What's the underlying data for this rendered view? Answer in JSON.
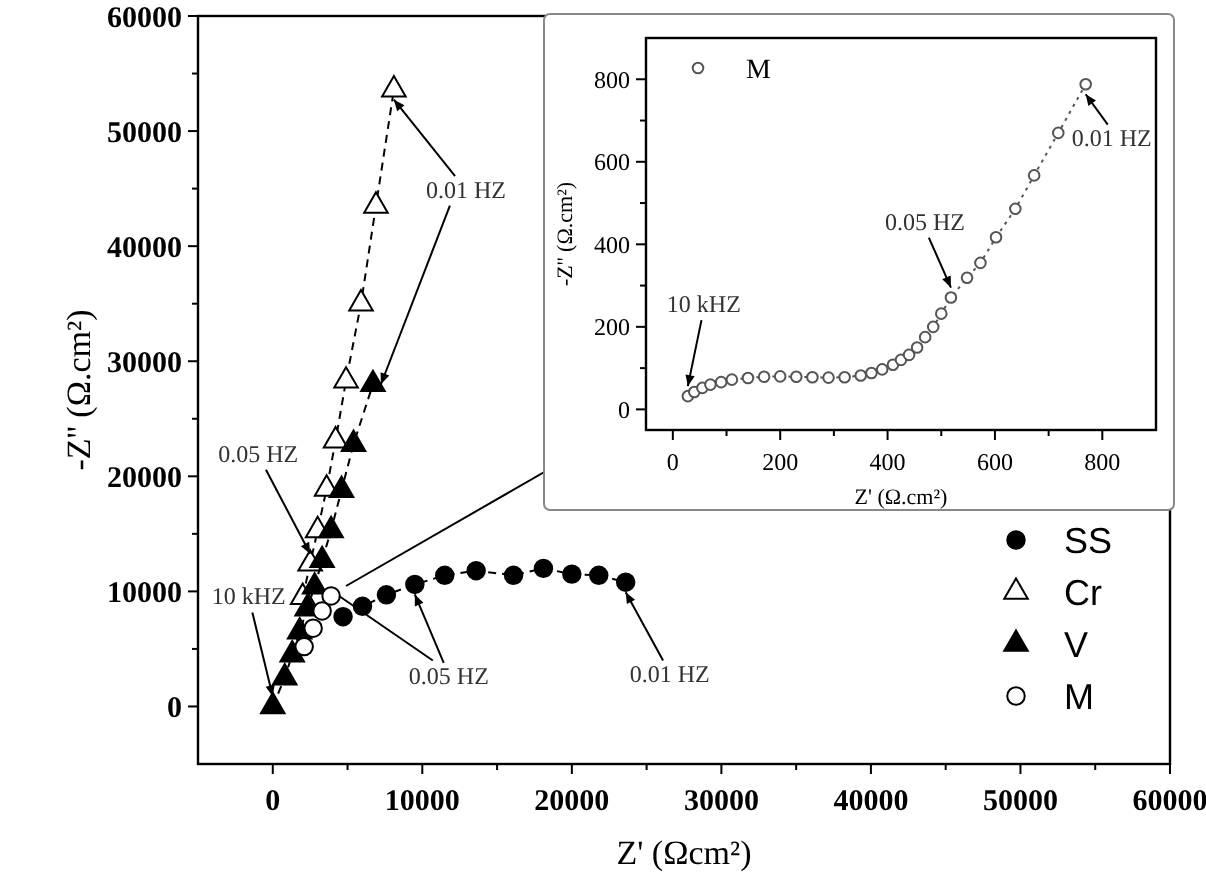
{
  "chart_data": [
    {
      "type": "line",
      "xlabel": "Z' (Ωcm²)",
      "ylabel": "-Z'' (Ω.cm²)",
      "xlim": [
        -5000,
        60000
      ],
      "ylim": [
        -5000,
        60000
      ],
      "xticks": [
        0,
        {
          "value": 5000,
          "label": null
        },
        10000,
        {
          "value": 15000,
          "label": null
        },
        20000,
        {
          "value": 25000,
          "label": null
        },
        30000,
        {
          "value": 35000,
          "label": null
        },
        40000,
        {
          "value": 45000,
          "label": null
        },
        50000,
        {
          "value": 55000,
          "label": null
        },
        60000
      ],
      "yticks": [
        0,
        {
          "value": 5000,
          "label": null
        },
        10000,
        {
          "value": 15000,
          "label": null
        },
        20000,
        {
          "value": 25000,
          "label": null
        },
        30000,
        {
          "value": 35000,
          "label": null
        },
        40000,
        {
          "value": 45000,
          "label": null
        },
        50000,
        {
          "value": 55000,
          "label": null
        },
        60000
      ],
      "line_style": "dashed",
      "legend": "right",
      "series": [
        {
          "name": "SS",
          "color": "#000000",
          "marker": "circle",
          "x": [
            4700,
            6000,
            7600,
            9500,
            11500,
            13600,
            16100,
            18100,
            20000,
            21800,
            23600
          ],
          "values": [
            7800,
            8700,
            9700,
            10600,
            11400,
            11800,
            11400,
            12000,
            11500,
            11400,
            10800
          ]
        },
        {
          "name": "Cr",
          "color": "#000000",
          "colors": [
            "#ffffff",
            "#ffffff",
            "#ffffff",
            "#ffffff",
            "#ffffff",
            "#ffffff",
            "#ffffff",
            "#ffffff",
            "#ffffff"
          ],
          "marker": "triangle",
          "x": [
            2000,
            2500,
            3000,
            3600,
            4200,
            4900,
            5900,
            6900,
            8100
          ],
          "values": [
            9500,
            12400,
            15300,
            18900,
            23100,
            28300,
            35000,
            43500,
            53600
          ]
        },
        {
          "name": "V",
          "color": "#000000",
          "marker": "triangle",
          "x": [
            0,
            800,
            1300,
            1800,
            2300,
            2800,
            3300,
            3900,
            4600,
            5400,
            6700
          ],
          "values": [
            0,
            2500,
            4500,
            6500,
            8500,
            10400,
            12700,
            15300,
            18800,
            22800,
            28000
          ]
        },
        {
          "name": "M",
          "type": "scatter",
          "color": "#000000",
          "colors": [
            "#ffffff",
            "#ffffff",
            "#ffffff",
            "#ffffff"
          ],
          "marker": "circle",
          "x": [
            2100,
            2700,
            3300,
            3900
          ],
          "values": [
            5200,
            6800,
            8300,
            9600
          ]
        }
      ],
      "annotations": [
        {
          "text": "0.01 HZ",
          "x": 8100,
          "y": 53600
        },
        {
          "text": "0.05 HZ",
          "x": 2500,
          "y": 12400
        },
        {
          "text": "10 kHZ",
          "x": 0,
          "y": 0
        },
        {
          "text": "0.05 HZ",
          "x": 9500,
          "y": 10600
        },
        {
          "text": "0.01 HZ",
          "x": 23600,
          "y": 10800
        }
      ]
    },
    {
      "type": "line",
      "xlabel": "Z' (Ω.cm²)",
      "ylabel": "-Z'' (Ω.cm²)",
      "xlim": [
        -50,
        900
      ],
      "ylim": [
        -50,
        900
      ],
      "xticks": [
        0,
        {
          "value": 100,
          "label": null
        },
        200,
        {
          "value": 300,
          "label": null
        },
        400,
        {
          "value": 500,
          "label": null
        },
        600,
        {
          "value": 700,
          "label": null
        },
        800
      ],
      "yticks": [
        0,
        {
          "value": 100,
          "label": null
        },
        200,
        {
          "value": 300,
          "label": null
        },
        400,
        {
          "value": 500,
          "label": null
        },
        600,
        {
          "value": 700,
          "label": null
        },
        800
      ],
      "line_style": "dotted",
      "legend": "top left",
      "series": [
        {
          "name": "M",
          "color": "#555555",
          "colors": [
            "#ffffff",
            "#ffffff",
            "#ffffff",
            "#ffffff",
            "#ffffff",
            "#ffffff",
            "#ffffff",
            "#ffffff",
            "#ffffff",
            "#ffffff",
            "#ffffff",
            "#ffffff",
            "#ffffff",
            "#ffffff",
            "#ffffff",
            "#ffffff",
            "#ffffff",
            "#ffffff",
            "#ffffff",
            "#ffffff",
            "#ffffff",
            "#ffffff",
            "#ffffff",
            "#ffffff",
            "#ffffff",
            "#ffffff",
            "#ffffff",
            "#ffffff",
            "#ffffff",
            "#ffffff",
            "#ffffff"
          ],
          "marker": "circle",
          "x": [
            28,
            40,
            55,
            70,
            90,
            110,
            140,
            170,
            200,
            230,
            260,
            290,
            320,
            350,
            370,
            390,
            410,
            425,
            440,
            455,
            470,
            485,
            500,
            518,
            548,
            573,
            602,
            638,
            673,
            718,
            769
          ],
          "values": [
            32,
            42,
            52,
            60,
            66,
            72,
            76,
            79,
            80,
            79,
            78,
            77,
            78,
            82,
            88,
            97,
            108,
            120,
            132,
            150,
            175,
            200,
            232,
            271,
            319,
            355,
            417,
            486,
            567,
            670,
            788
          ]
        }
      ],
      "annotations": [
        {
          "text": "10 kHZ",
          "x": 28,
          "y": 32
        },
        {
          "text": "0.05 HZ",
          "x": 518,
          "y": 271
        },
        {
          "text": "0.01 HZ",
          "x": 769,
          "y": 788
        }
      ]
    }
  ]
}
